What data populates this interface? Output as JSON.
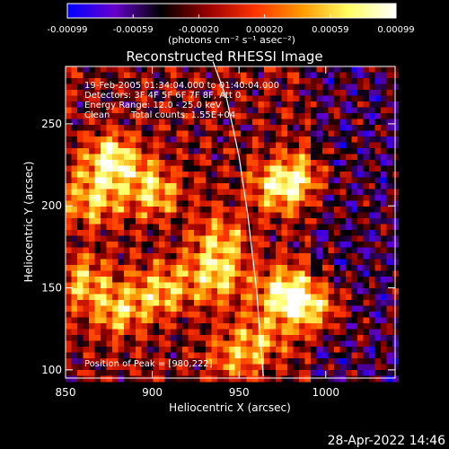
{
  "chart_data": {
    "type": "heatmap",
    "title": "Reconstructed RHESSI Image",
    "xlabel": "Heliocentric X (arcsec)",
    "ylabel": "Heliocentric Y (arcsec)",
    "xlim": [
      850,
      1040
    ],
    "ylim": [
      95,
      285
    ],
    "x_ticks": [
      "850",
      "900",
      "950",
      "1000"
    ],
    "y_ticks": [
      "100",
      "150",
      "200",
      "250"
    ],
    "colorbar": {
      "range": [
        -0.00099,
        0.00099
      ],
      "tick_labels": [
        "-0.00099",
        "-0.00059",
        "-0.00020",
        "0.00020",
        "0.00059",
        "0.00099"
      ],
      "unit_label": "(photons cm⁻² s⁻¹ asec⁻²)",
      "colors": [
        "#0000ff",
        "#6600cc",
        "#000000",
        "#990000",
        "#ff3300",
        "#ff9900",
        "#ffff66",
        "#ffffff"
      ]
    },
    "info": {
      "time_range": "19-Feb-2005 01:34:04.000 to 01:40:04.000",
      "detectors": "Detectors: 3F 4F 5F 6F 7F 8F, Att 0",
      "energy": "Energy Range: 12.0 - 25.0 keV",
      "clean_label": "Clean",
      "counts": "Total counts: 1.55E+04",
      "peak": "Position of Peak = [980,222]"
    },
    "limb_curve": [
      [
        935,
        288
      ],
      [
        943,
        265
      ],
      [
        950,
        230
      ],
      [
        955,
        195
      ],
      [
        960,
        150
      ],
      [
        964,
        96
      ]
    ],
    "bright_regions": [
      {
        "x": 877,
        "y": 228,
        "level": 0.95
      },
      {
        "x": 865,
        "y": 205,
        "level": 0.7
      },
      {
        "x": 900,
        "y": 210,
        "level": 0.75
      },
      {
        "x": 938,
        "y": 180,
        "level": 0.6
      },
      {
        "x": 970,
        "y": 212,
        "level": 0.7
      },
      {
        "x": 985,
        "y": 218,
        "level": 0.6
      },
      {
        "x": 975,
        "y": 148,
        "level": 0.95
      },
      {
        "x": 992,
        "y": 140,
        "level": 0.8
      },
      {
        "x": 935,
        "y": 158,
        "level": 0.75
      },
      {
        "x": 905,
        "y": 150,
        "level": 0.7
      },
      {
        "x": 880,
        "y": 138,
        "level": 0.65
      },
      {
        "x": 860,
        "y": 155,
        "level": 0.6
      },
      {
        "x": 960,
        "y": 120,
        "level": 0.5
      },
      {
        "x": 945,
        "y": 110,
        "level": 0.45
      }
    ]
  },
  "footer": {
    "timestamp": "28-Apr-2022 14:46"
  }
}
